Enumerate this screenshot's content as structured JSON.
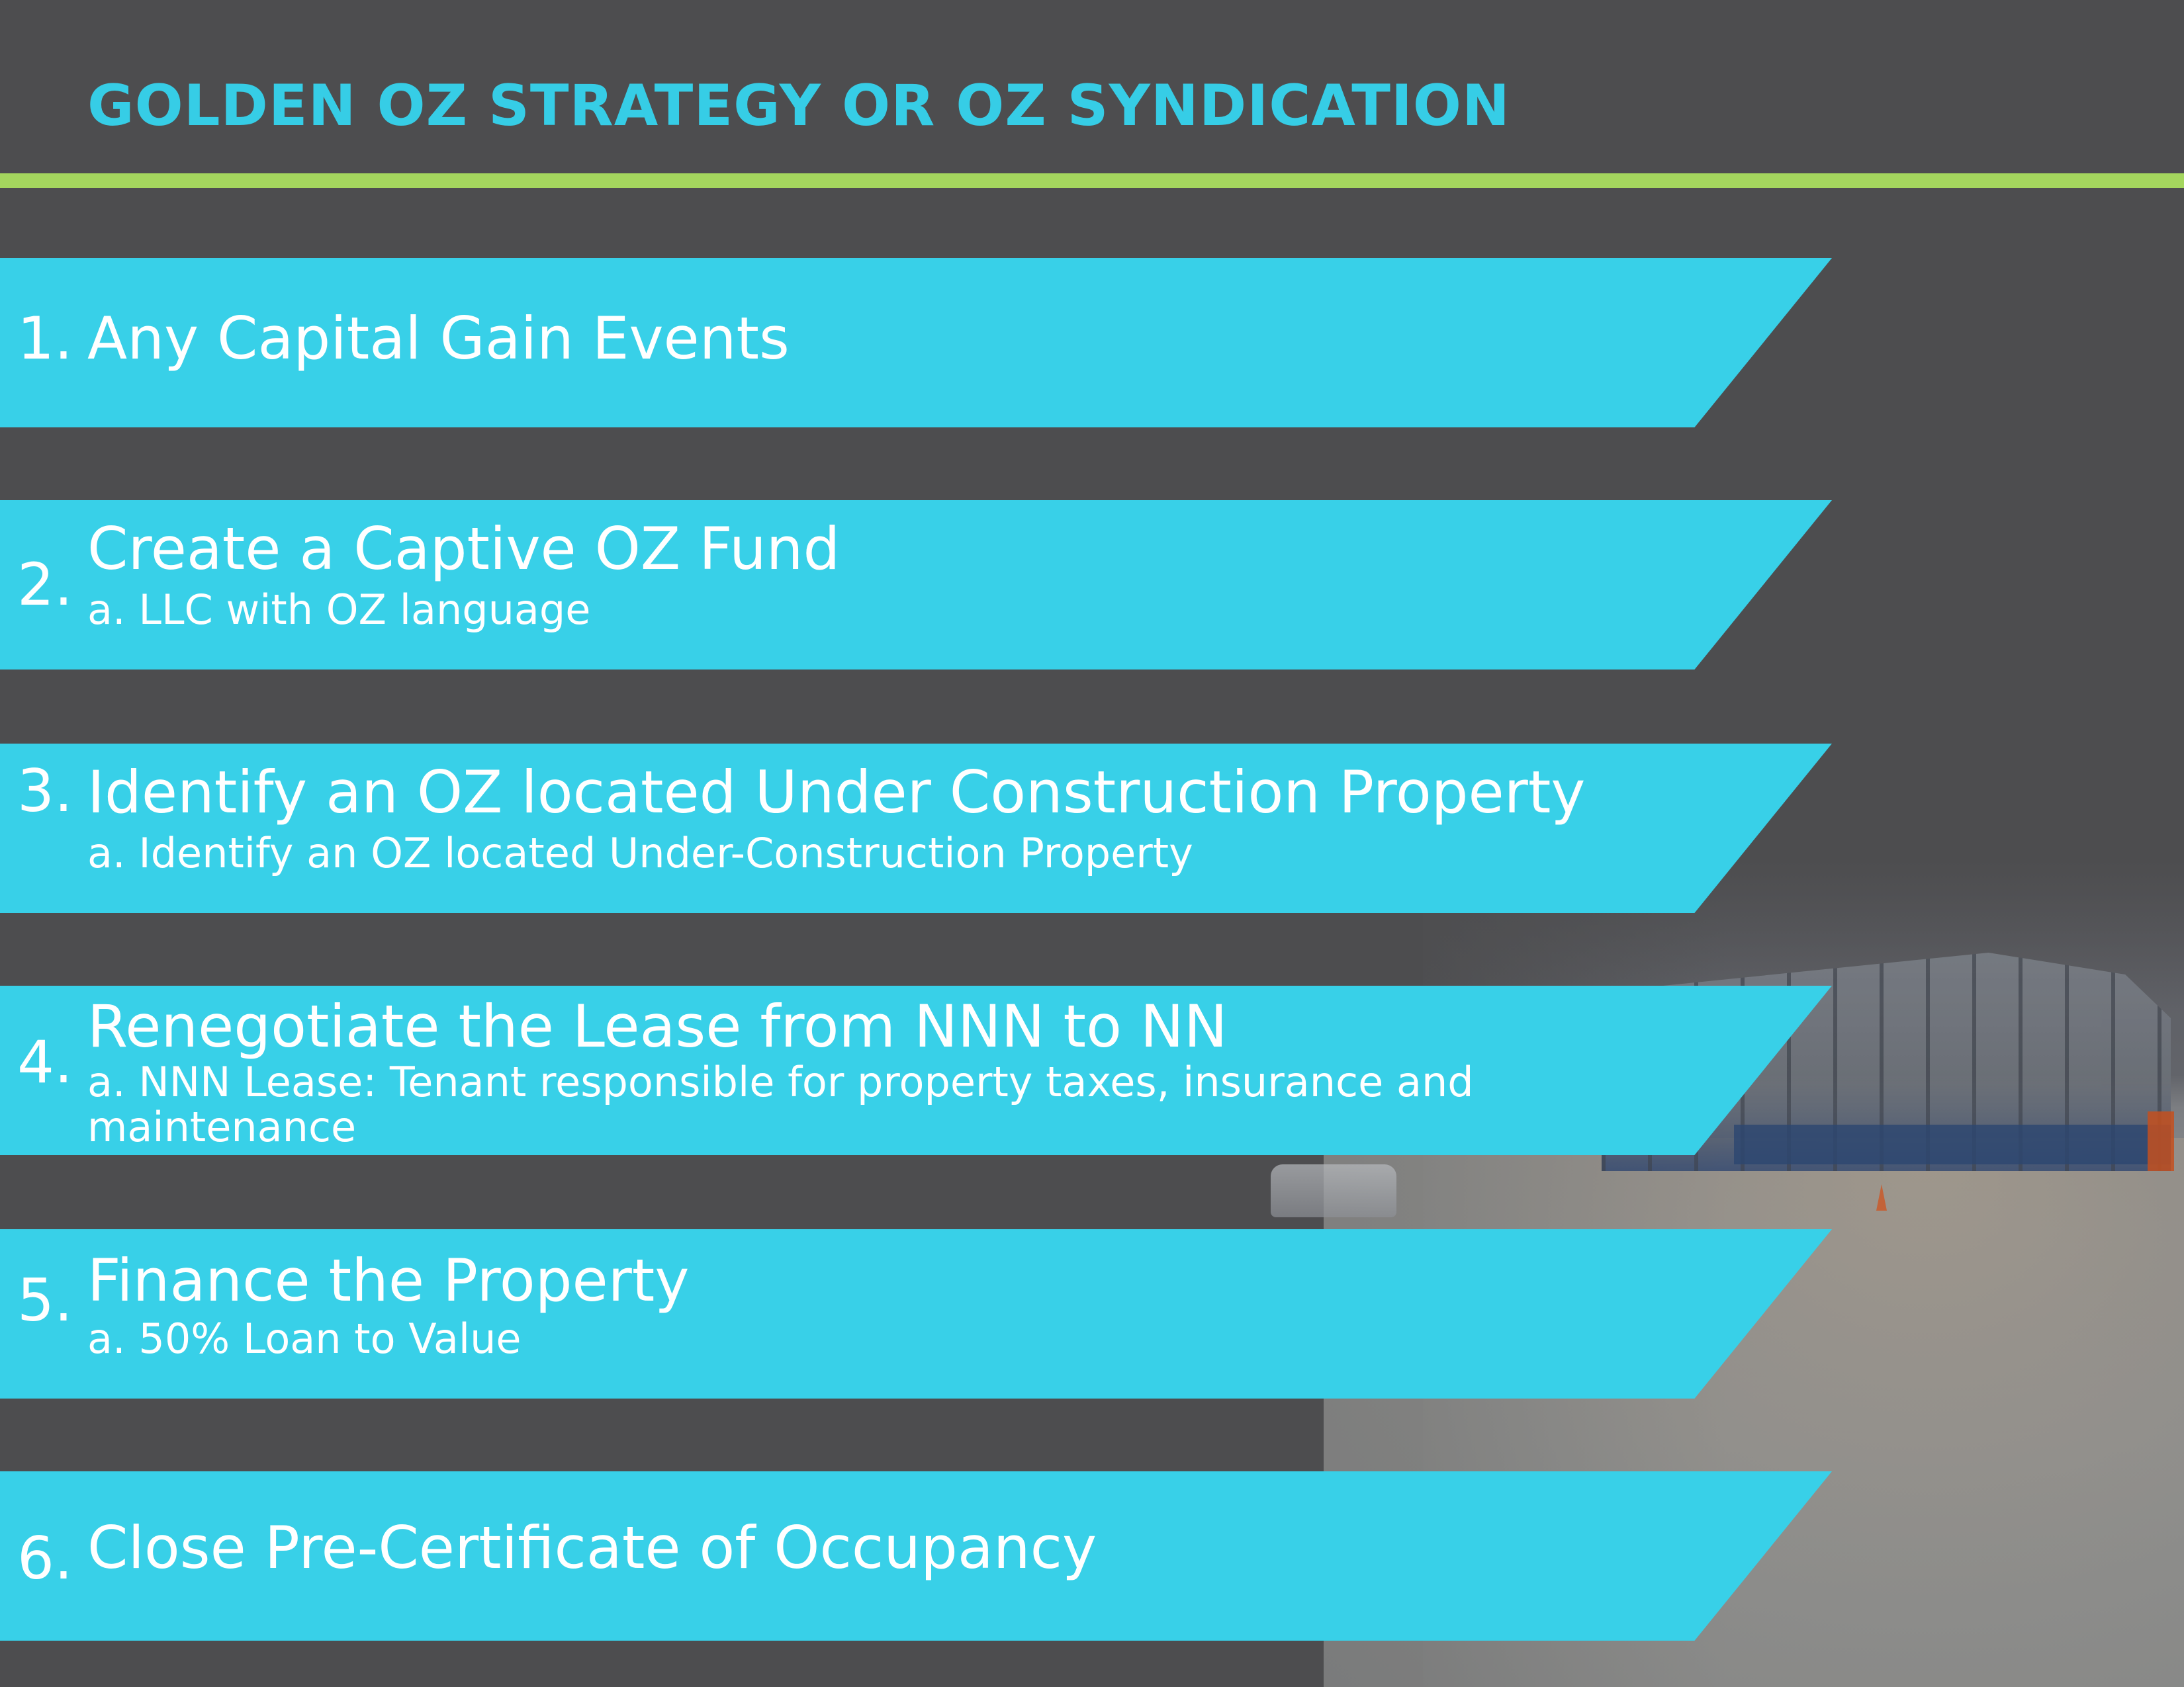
{
  "title": "GOLDEN OZ STRATEGY OR OZ SYNDICATION",
  "colors": {
    "background": "#4d4d4f",
    "accent": "#36cde6",
    "rule": "#a4d65e",
    "step_text": "#ffffff"
  },
  "steps": [
    {
      "number": "1.",
      "title": "Any Capital Gain Events",
      "subtitle": ""
    },
    {
      "number": "2.",
      "title": "Create a Captive OZ Fund",
      "subtitle": "a. LLC with OZ language"
    },
    {
      "number": "3.",
      "title": "Identify an OZ located Under Construction Property",
      "subtitle": "a. Identify an OZ located Under-Construction Property"
    },
    {
      "number": "4.",
      "title": "Renegotiate the Lease from NNN to NN",
      "subtitle": "a. NNN Lease: Tenant responsible for property taxes, insurance and maintenance"
    },
    {
      "number": "5.",
      "title": "Finance the Property",
      "subtitle": "a. 50% Loan to Value"
    },
    {
      "number": "6.",
      "title": "Close Pre-Certificate of Occupancy",
      "subtitle": ""
    }
  ]
}
